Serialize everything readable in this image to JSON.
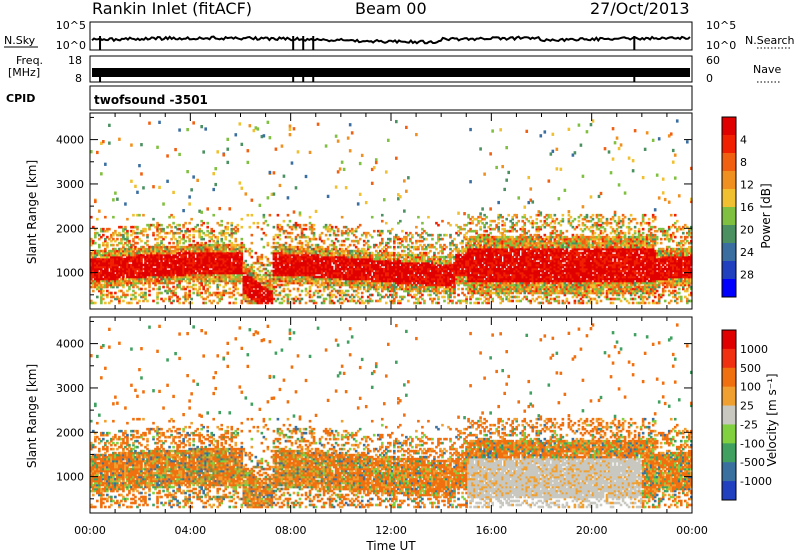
{
  "header": {
    "station": "Rankin Inlet (fitACF)",
    "beam": "Beam 00",
    "date": "27/Oct/2013"
  },
  "top_panels": {
    "nsky": {
      "left_label": "N.Sky",
      "left_ticks": [
        "10^5",
        "10^0"
      ],
      "right_label": "N.Search",
      "right_ticks": [
        "10^5",
        "10^0"
      ]
    },
    "freq": {
      "left_label_line1": "Freq.",
      "left_label_line2": "[MHz]",
      "left_ticks": [
        "18",
        "8"
      ],
      "right_label": "Nave",
      "right_ticks": [
        "60",
        "0"
      ]
    },
    "cpid": {
      "label": "CPID",
      "text": "twofsound -3501"
    }
  },
  "chart_data": [
    {
      "type": "heatmap",
      "name": "power-panel",
      "xlabel": "",
      "ylabel": "Slant Range [km]",
      "x_ticks": [
        "00:00",
        "04:00",
        "08:00",
        "12:00",
        "16:00",
        "20:00",
        "00:00"
      ],
      "x_range_hours": [
        0,
        24
      ],
      "y_ticks": [
        1000,
        2000,
        3000,
        4000
      ],
      "ylim": [
        180,
        4600
      ],
      "colorbar": {
        "label": "Power [dB]",
        "ticks": [
          "4",
          "8",
          "12",
          "16",
          "20",
          "24",
          "28"
        ],
        "colors": [
          "#0000ff",
          "#2040c0",
          "#3a6ea0",
          "#4a9060",
          "#80c040",
          "#f0c030",
          "#f09020",
          "#f06010",
          "#f02000",
          "#e00000"
        ]
      }
    },
    {
      "type": "heatmap",
      "name": "velocity-panel",
      "xlabel": "Time UT",
      "ylabel": "Slant Range [km]",
      "x_ticks": [
        "00:00",
        "04:00",
        "08:00",
        "12:00",
        "16:00",
        "20:00",
        "00:00"
      ],
      "x_range_hours": [
        0,
        24
      ],
      "y_ticks": [
        1000,
        2000,
        3000,
        4000
      ],
      "ylim": [
        180,
        4600
      ],
      "colorbar": {
        "label": "Velocity [m s⁻¹]",
        "ticks": [
          "1000",
          "500",
          "100",
          "25",
          "-25",
          "-100",
          "-500",
          "-1000"
        ],
        "colors": [
          "#2040c0",
          "#3a70a0",
          "#40a060",
          "#80d040",
          "#c8c8c0",
          "#f0a030",
          "#f07010",
          "#f03010",
          "#e00000"
        ]
      }
    }
  ]
}
